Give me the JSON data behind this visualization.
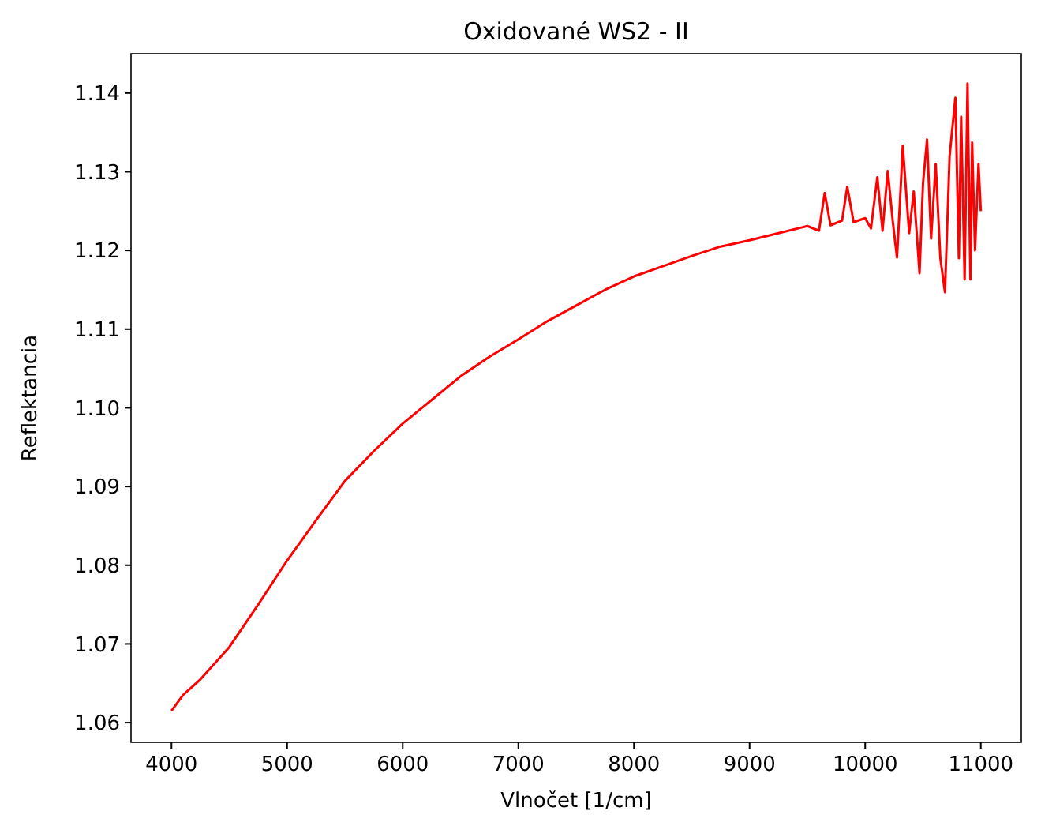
{
  "chart_data": {
    "type": "line",
    "title": "Oxidované WS2 - II",
    "xlabel": "Vlnočet [1/cm]",
    "ylabel": "Reflektancia",
    "xlim": [
      3650,
      11350
    ],
    "ylim": [
      1.0575,
      1.145
    ],
    "xticks": [
      4000,
      5000,
      6000,
      7000,
      8000,
      9000,
      10000,
      11000
    ],
    "yticks": [
      1.06,
      1.07,
      1.08,
      1.09,
      {
        "value": 1.1,
        "label": "1.10"
      },
      1.11,
      1.12,
      1.13,
      1.14
    ],
    "grid": false,
    "series": [
      {
        "color": "#ff0000",
        "line_style": "solid",
        "x": [
          4000,
          4100,
          4250,
          4500,
          4750,
          5000,
          5250,
          5500,
          5750,
          6000,
          6250,
          6500,
          6750,
          7000,
          7250,
          7500,
          7750,
          8000,
          8250,
          8500,
          8750,
          9000,
          9250,
          9500,
          9600,
          9650,
          9700,
          9800,
          9845,
          9900,
          10000,
          10050,
          10105,
          10150,
          10195,
          10240,
          10275,
          10300,
          10325,
          10380,
          10420,
          10470,
          10500,
          10535,
          10570,
          10610,
          10650,
          10690,
          10730,
          10780,
          10810,
          10830,
          10860,
          10885,
          10910,
          10925,
          10950,
          10980,
          11000
        ],
        "values": [
          1.0615,
          1.0635,
          1.0655,
          1.0696,
          1.075,
          1.0806,
          1.0857,
          1.0907,
          1.0945,
          1.098,
          1.101,
          1.104,
          1.1065,
          1.1087,
          1.111,
          1.113,
          1.115,
          1.1167,
          1.118,
          1.1193,
          1.1205,
          1.1213,
          1.1222,
          1.1231,
          1.1225,
          1.1273,
          1.1232,
          1.1238,
          1.1281,
          1.1236,
          1.1241,
          1.1228,
          1.1293,
          1.1225,
          1.1301,
          1.1235,
          1.1191,
          1.126,
          1.1333,
          1.1222,
          1.1275,
          1.1171,
          1.1285,
          1.1341,
          1.1215,
          1.131,
          1.119,
          1.1147,
          1.132,
          1.1394,
          1.119,
          1.137,
          1.1163,
          1.1412,
          1.1163,
          1.1337,
          1.12,
          1.131,
          1.125
        ]
      }
    ]
  }
}
